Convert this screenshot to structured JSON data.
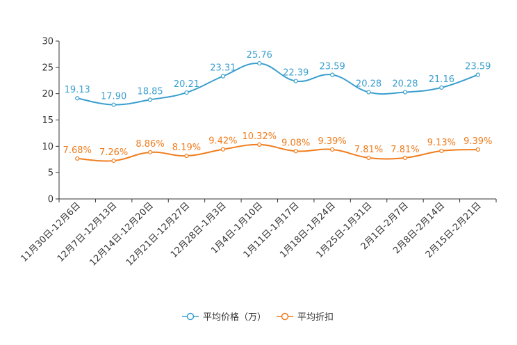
{
  "chart_data": {
    "type": "line",
    "title": "",
    "xlabel": "",
    "ylabel": "",
    "ylim": [
      0,
      30
    ],
    "yticks": [
      0,
      5,
      10,
      15,
      20,
      25,
      30
    ],
    "grid": false,
    "legend_position": "bottom",
    "categories": [
      "11月30日-12月6日",
      "12月7日-12月13日",
      "12月14日-12月20日",
      "12月21日-12月27日",
      "12月28日-1月3日",
      "1月4日-1月10日",
      "1月11日-1月17日",
      "1月18日-1月24日",
      "1月25日-1月31日",
      "2月1日-2月7日",
      "2月8日-2月14日",
      "2月15日-2月21日"
    ],
    "series": [
      {
        "name": "平均价格（万）",
        "color": "#3a9fce",
        "values": [
          19.13,
          17.9,
          18.85,
          20.21,
          23.31,
          25.76,
          22.39,
          23.59,
          20.28,
          20.28,
          21.16,
          23.59
        ],
        "labels": [
          "19.13",
          "17.90",
          "18.85",
          "20.21",
          "23.31",
          "25.76",
          "22.39",
          "23.59",
          "20.28",
          "20.28",
          "21.16",
          "23.59"
        ]
      },
      {
        "name": "平均折扣",
        "color": "#f07c1c",
        "values": [
          7.68,
          7.26,
          8.86,
          8.19,
          9.42,
          10.32,
          9.08,
          9.39,
          7.81,
          7.81,
          9.13,
          9.39
        ],
        "labels": [
          "7.68%",
          "7.26%",
          "8.86%",
          "8.19%",
          "9.42%",
          "10.32%",
          "9.08%",
          "9.39%",
          "7.81%",
          "7.81%",
          "9.13%",
          "9.39%"
        ]
      }
    ]
  }
}
